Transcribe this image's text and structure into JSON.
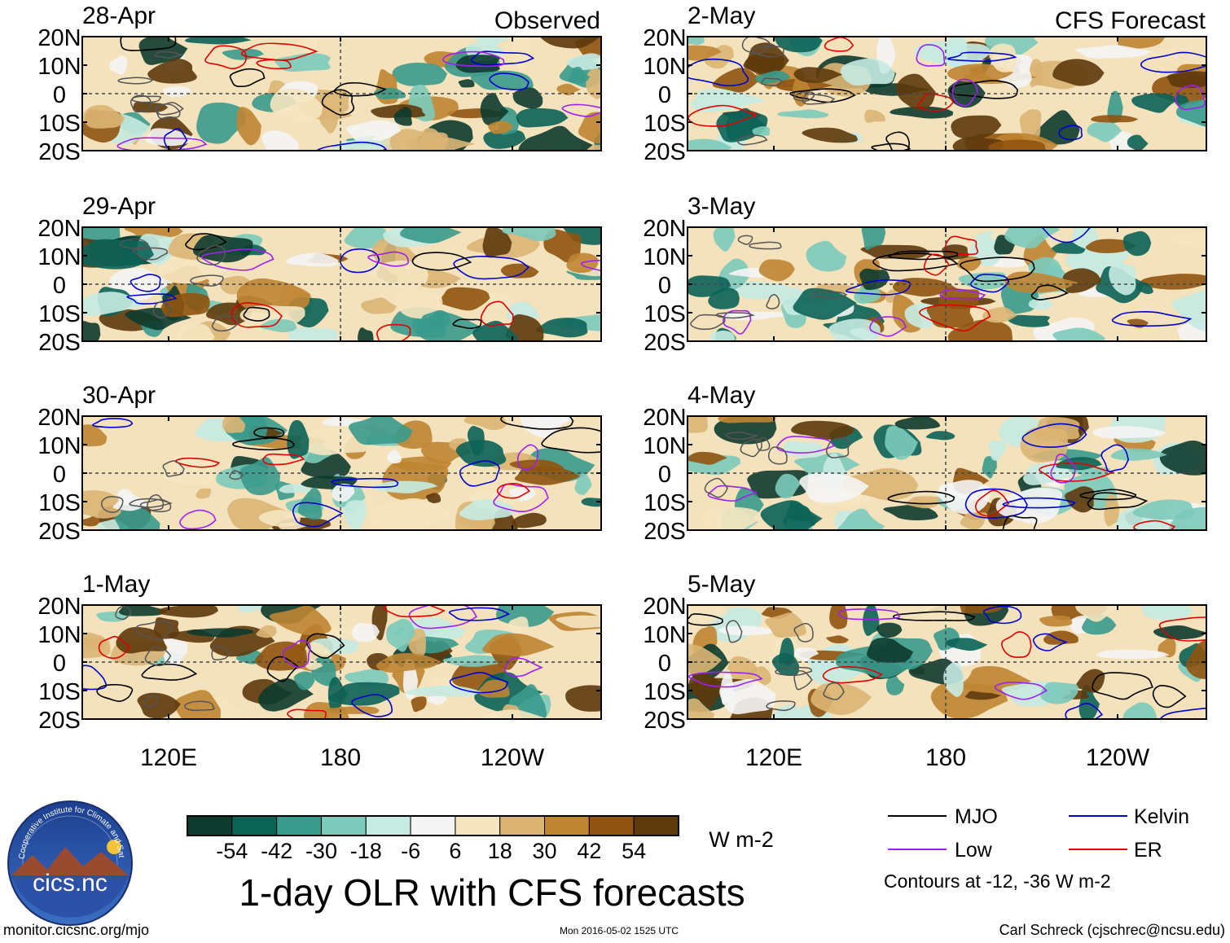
{
  "title": "1-day OLR with CFS forecasts",
  "units": "W m-2",
  "columns": [
    {
      "header": "Observed",
      "dates": [
        "28-Apr",
        "29-Apr",
        "30-Apr",
        "1-May"
      ]
    },
    {
      "header": "CFS Forecast",
      "dates": [
        "2-May",
        "3-May",
        "4-May",
        "5-May"
      ]
    }
  ],
  "lat_labels": [
    "20N",
    "10N",
    "0",
    "10S",
    "20S"
  ],
  "lon_labels": [
    "120E",
    "180",
    "120W"
  ],
  "colorbar": {
    "ticks": [
      "-54",
      "-42",
      "-30",
      "-18",
      "-6",
      "6",
      "18",
      "30",
      "42",
      "54"
    ],
    "colors": [
      "#0d3b2e",
      "#0b6356",
      "#3a9a8c",
      "#7ccabb",
      "#c6ebe2",
      "#f5f5f5",
      "#f5e5c0",
      "#dcb574",
      "#bf8533",
      "#905410",
      "#5e3a0c"
    ]
  },
  "legend": {
    "items": [
      {
        "label": "MJO",
        "color": "#000000"
      },
      {
        "label": "Kelvin",
        "color": "#0000cc"
      },
      {
        "label": "Low",
        "color": "#a020f0"
      },
      {
        "label": "ER",
        "color": "#e00000"
      }
    ],
    "note": "Contours at -12, -36 W m-2"
  },
  "logo_text": "cics.nc",
  "logo_ring_text": "Cooperative Institute for Climate and Satellites",
  "footer": {
    "left": "monitor.cicsnc.org/mjo",
    "center": "Mon 2016-05-02 1525 UTC",
    "right": "Carl Schreck (cjschrec@ncsu.edu)"
  }
}
